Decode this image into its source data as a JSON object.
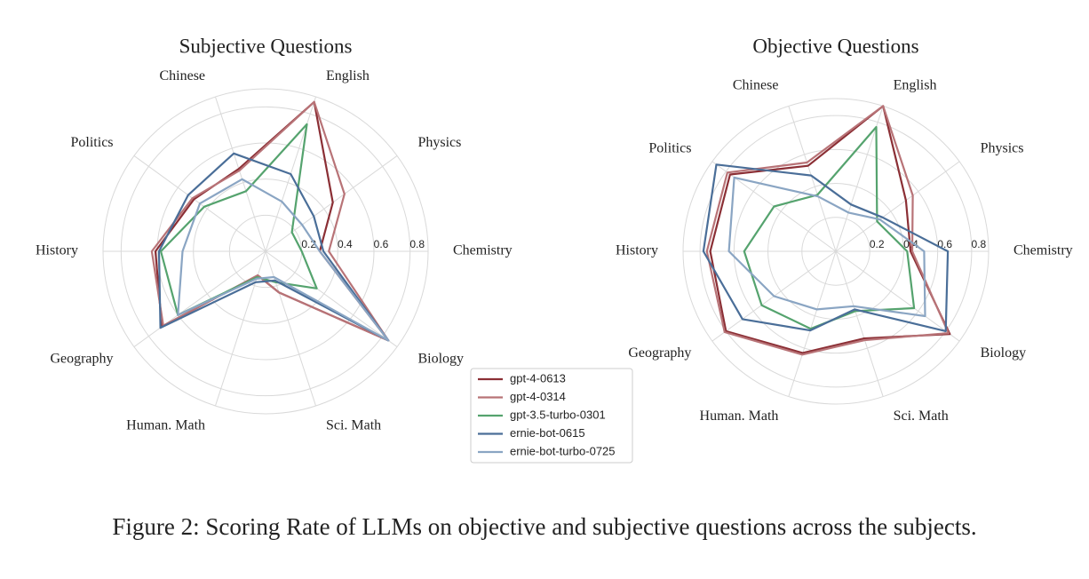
{
  "chart_data": [
    {
      "type": "radar",
      "title": "Subjective Questions",
      "categories": [
        "English",
        "Physics",
        "Chemistry",
        "Biology",
        "Sci. Math",
        "Human. Math",
        "Geography",
        "History",
        "Politics",
        "Chinese"
      ],
      "ylim": [
        0,
        0.9
      ],
      "yticks": [
        0.2,
        0.4,
        0.6,
        0.8
      ],
      "grid": true,
      "series": [
        {
          "name": "gpt-4-0613",
          "color": "#8b2f35",
          "values": [
            0.87,
            0.46,
            0.3,
            0.84,
            0.24,
            0.14,
            0.71,
            0.61,
            0.49,
            0.48
          ]
        },
        {
          "name": "gpt-4-0314",
          "color": "#b87377",
          "values": [
            0.87,
            0.54,
            0.35,
            0.84,
            0.24,
            0.14,
            0.7,
            0.63,
            0.5,
            0.47
          ]
        },
        {
          "name": "gpt-3.5-turbo-0301",
          "color": "#55a36e",
          "values": [
            0.74,
            0.18,
            0.2,
            0.35,
            0.18,
            0.15,
            0.6,
            0.58,
            0.42,
            0.35
          ]
        },
        {
          "name": "ernie-bot-0615",
          "color": "#4a6e98",
          "values": [
            0.45,
            0.33,
            0.32,
            0.84,
            0.17,
            0.18,
            0.72,
            0.59,
            0.53,
            0.57
          ]
        },
        {
          "name": "ernie-bot-turbo-0725",
          "color": "#8aa5c3",
          "values": [
            0.29,
            0.25,
            0.3,
            0.84,
            0.15,
            0.16,
            0.6,
            0.46,
            0.45,
            0.42
          ]
        }
      ]
    },
    {
      "type": "radar",
      "title": "Objective Questions",
      "categories": [
        "English",
        "Physics",
        "Chemistry",
        "Biology",
        "Sci. Math",
        "Human. Math",
        "Geography",
        "History",
        "Politics",
        "Chinese"
      ],
      "ylim": [
        0,
        0.9
      ],
      "yticks": [
        0.2,
        0.4,
        0.6,
        0.8
      ],
      "grid": true,
      "series": [
        {
          "values": [
            0.9,
            0.51,
            0.44,
            0.83,
            0.54,
            0.63,
            0.8,
            0.74,
            0.77,
            0.53
          ]
        },
        {
          "values": [
            0.9,
            0.56,
            0.45,
            0.82,
            0.55,
            0.64,
            0.81,
            0.76,
            0.79,
            0.55
          ]
        },
        {
          "values": [
            0.77,
            0.3,
            0.42,
            0.57,
            0.37,
            0.48,
            0.54,
            0.54,
            0.45,
            0.35
          ]
        },
        {
          "values": [
            0.29,
            0.34,
            0.66,
            0.8,
            0.36,
            0.49,
            0.68,
            0.78,
            0.87,
            0.47
          ]
        },
        {
          "values": [
            0.24,
            0.32,
            0.52,
            0.65,
            0.34,
            0.36,
            0.45,
            0.63,
            0.74,
            0.34
          ]
        }
      ]
    }
  ],
  "caption": "Figure 2: Scoring Rate of LLMs on objective and subjective questions across the subjects."
}
